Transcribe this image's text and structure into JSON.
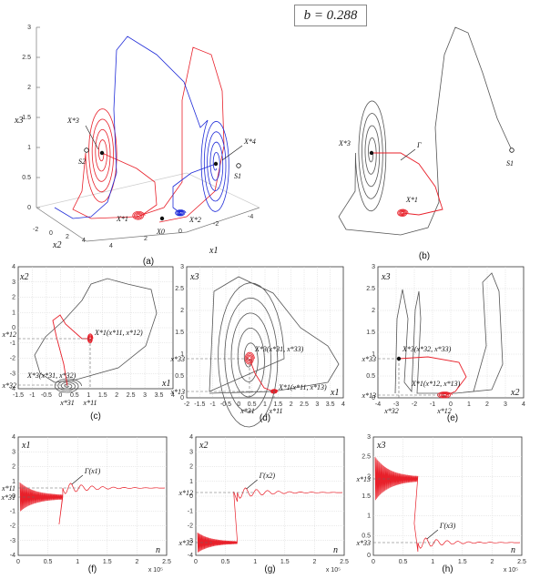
{
  "title": "b = 0.288",
  "colors": {
    "red": "#e8202a",
    "blue": "#1f2bd8",
    "gray": "#555555",
    "grid": "#d6d6d6"
  },
  "panel_labels": [
    "(a)",
    "(b)",
    "(c)",
    "(d)",
    "(e)",
    "(f)",
    "(g)",
    "(h)"
  ],
  "panel_a": {
    "z_label": "x3",
    "x1_label": "x1",
    "x2_label": "x2",
    "z_ticks": [
      "0",
      "0.5",
      "1",
      "1.5",
      "2",
      "2.5",
      "3"
    ],
    "x2_ticks": [
      "-2",
      "0",
      "2",
      "4"
    ],
    "x1_ticks": [
      "4",
      "2",
      "0",
      "-2",
      "-4"
    ],
    "points": [
      "X*3",
      "X*4",
      "X*1",
      "X*2",
      "X0",
      "S2",
      "S1"
    ]
  },
  "panel_b": {
    "points": [
      "X*3",
      "X*1",
      "S1"
    ],
    "curve": "Γ"
  },
  "panel_c": {
    "xlabel": "x1",
    "ylabel": "x2",
    "x_ticks": [
      "-1.5",
      "-1",
      "-0.5",
      "0",
      "0.5",
      "1",
      "1.5",
      "2",
      "2.5",
      "3",
      "3.5",
      "4"
    ],
    "y_ticks": [
      "4",
      "3",
      "2",
      "1",
      "0",
      "-1",
      "-2",
      "-3",
      "-4"
    ],
    "annot_1": "X*1(x*11, x*12)",
    "annot_3": "X*3(x*31, x*32)",
    "dash_labels": [
      "x*12",
      "x*32",
      "x*31",
      "x*11"
    ]
  },
  "panel_d": {
    "xlabel": "x1",
    "ylabel": "x3",
    "x_ticks": [
      "-2",
      "-1.5",
      "-1",
      "-0.5",
      "0",
      "0.5",
      "1",
      "1.5",
      "2",
      "2.5",
      "3",
      "3.5",
      "4"
    ],
    "y_ticks": [
      "0",
      "0.5",
      "1",
      "1.5",
      "2",
      "2.5",
      "3"
    ],
    "annot_3": "X*3(x*31, x*33)",
    "annot_1": "X*1(x*11, x*13)",
    "dash_labels": [
      "x*33",
      "x*13",
      "x*31",
      "x*11"
    ]
  },
  "panel_e": {
    "xlabel": "x2",
    "ylabel": "x3",
    "x_ticks": [
      "-4",
      "-3",
      "-2",
      "-1",
      "0",
      "1",
      "2",
      "3",
      "4"
    ],
    "y_ticks": [
      "0",
      "0.5",
      "1",
      "1.5",
      "2",
      "2.5",
      "3"
    ],
    "annot_3": "X*3(x*32, x*33)",
    "annot_1": "X*1(x*12, x*13)",
    "dash_labels": [
      "x*33",
      "x*13",
      "x*32",
      "x*12"
    ]
  },
  "ts_x_ticks": [
    "0",
    "0.5",
    "1",
    "1.5",
    "2",
    "2.5"
  ],
  "ts_x_exp": "x 10⁵",
  "ts_xlabel": "n",
  "panel_f": {
    "ylabel": "x1",
    "curve": "Γ(x1)",
    "y_ticks": [
      "4",
      "3",
      "2",
      "1",
      "0",
      "-1",
      "-2",
      "-3",
      "-4"
    ],
    "dash_labels": [
      "x*11",
      "x*31"
    ]
  },
  "panel_g": {
    "ylabel": "x2",
    "curve": "Γ(x2)",
    "y_ticks": [
      "4",
      "3",
      "2",
      "1",
      "0",
      "-1",
      "-2",
      "-3",
      "-4"
    ],
    "dash_labels": [
      "x*12",
      "x*32"
    ]
  },
  "panel_h": {
    "ylabel": "x3",
    "curve": "Γ(x3)",
    "y_ticks": [
      "3",
      "2.5",
      "2",
      "1.5",
      "1",
      "0.5",
      "0"
    ],
    "dash_labels": [
      "x*33",
      "x*13"
    ]
  }
}
